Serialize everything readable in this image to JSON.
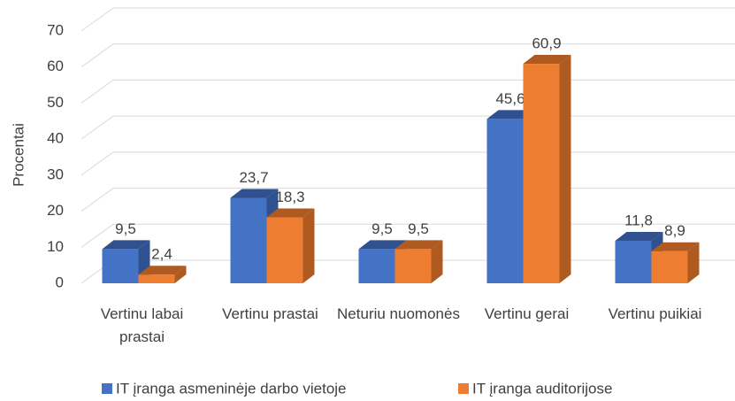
{
  "chart_data": {
    "type": "bar3d",
    "y_label": "Procentai",
    "categories": [
      "Vertinu labai prastai",
      "Vertinu prastai",
      "Neturiu nuomonės",
      "Vertinu gerai",
      "Vertinu puikiai"
    ],
    "series": [
      {
        "name": "IT įranga asmeninėje darbo vietoje",
        "color": "#4472c4",
        "side_color": "#2f528f",
        "values": [
          9.5,
          23.7,
          9.5,
          45.6,
          11.8
        ],
        "value_labels": [
          "9,5",
          "23,7",
          "9,5",
          "45,6",
          "11,8"
        ]
      },
      {
        "name": "IT įranga auditorijose",
        "color": "#ed7d31",
        "side_color": "#ae5a21",
        "values": [
          2.4,
          18.3,
          9.5,
          60.9,
          8.9
        ],
        "value_labels": [
          "2,4",
          "18,3",
          "9,5",
          "60,9",
          "8,9"
        ]
      }
    ],
    "ylim": [
      0,
      70
    ],
    "yticks": [
      0,
      10,
      20,
      30,
      40,
      50,
      60,
      70
    ],
    "grid": true,
    "legend": "bottom"
  }
}
